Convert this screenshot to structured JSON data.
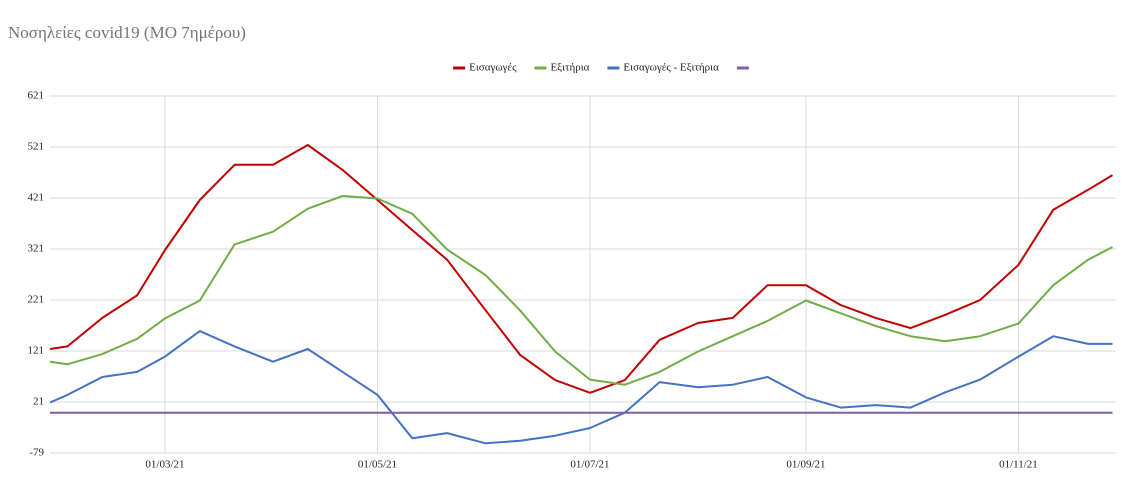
{
  "chart_data": {
    "type": "line",
    "title": "Νοσηλείες covid19 (ΜΟ 7ημέρου)",
    "x": [
      "27/01/21",
      "01/02/21",
      "11/02/21",
      "21/02/21",
      "01/03/21",
      "11/03/21",
      "21/03/21",
      "01/04/21",
      "11/04/21",
      "21/04/21",
      "01/05/21",
      "11/05/21",
      "21/05/21",
      "01/06/21",
      "11/06/21",
      "21/06/21",
      "01/07/21",
      "11/07/21",
      "21/07/21",
      "01/08/21",
      "11/08/21",
      "21/08/21",
      "01/09/21",
      "11/09/21",
      "21/09/21",
      "01/10/21",
      "11/10/21",
      "21/10/21",
      "01/11/21",
      "11/11/21",
      "21/11/21",
      "28/11/21"
    ],
    "series": [
      {
        "name": "Εισαγωγές",
        "color": "#c00000",
        "values": [
          125,
          130,
          186,
          230,
          319,
          417,
          486,
          486,
          525,
          476,
          417,
          358,
          300,
          201,
          113,
          64,
          39,
          64,
          143,
          176,
          186,
          250,
          250,
          211,
          186,
          166,
          192,
          221,
          290,
          398,
          437,
          466
        ]
      },
      {
        "name": "Εξιτήρια",
        "color": "#70ad47",
        "values": [
          100,
          95,
          115,
          145,
          185,
          220,
          330,
          355,
          400,
          425,
          420,
          390,
          320,
          270,
          200,
          120,
          65,
          55,
          80,
          120,
          150,
          180,
          220,
          195,
          170,
          150,
          140,
          150,
          175,
          250,
          300,
          325
        ]
      },
      {
        "name": "Εισαγωγές - Εξιτήρια",
        "color": "#4472c4",
        "values": [
          20,
          35,
          70,
          80,
          110,
          160,
          130,
          100,
          125,
          80,
          35,
          -50,
          -40,
          -60,
          -55,
          -45,
          -30,
          0,
          60,
          50,
          55,
          70,
          30,
          10,
          15,
          10,
          40,
          65,
          110,
          150,
          135,
          135
        ]
      },
      {
        "color": "#7f5fa8",
        "values": [
          0,
          0,
          0,
          0,
          0,
          0,
          0,
          0,
          0,
          0,
          0,
          0,
          0,
          0,
          0,
          0,
          0,
          0,
          0,
          0,
          0,
          0,
          0,
          0,
          0,
          0,
          0,
          0,
          0,
          0,
          0,
          0
        ]
      }
    ],
    "xlim": [
      "27/01/21",
      "29/11/21"
    ],
    "xticks": [
      "01/03/21",
      "01/05/21",
      "01/07/21",
      "01/09/21",
      "01/11/21"
    ],
    "ylim": [
      -79,
      621
    ],
    "yticks": [
      -79,
      21,
      121,
      221,
      321,
      421,
      521,
      621
    ],
    "grid": true,
    "legend": "top"
  }
}
